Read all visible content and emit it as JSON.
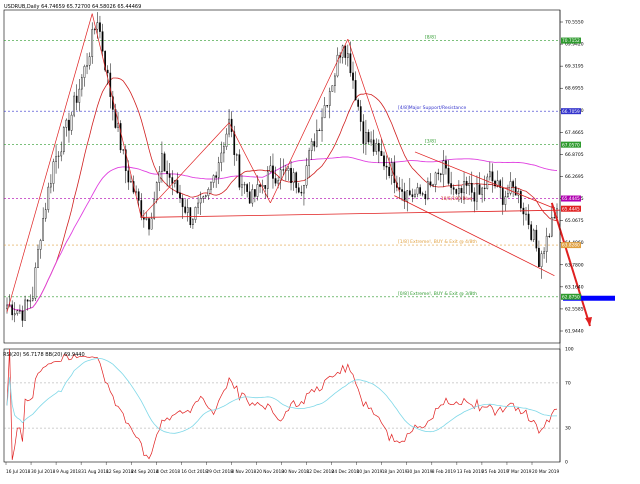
{
  "header": {
    "symbol_line": "USDRUB,Daily  64.74659 65.72700 64.58026 65.44469"
  },
  "main": {
    "levels": [
      {
        "price": 70.06,
        "label": "[8/8]",
        "price_label": "70.7152",
        "color": "#2e9a2e",
        "dashed": true
      },
      {
        "price": 68.12,
        "label": "[4/8]Major Support/Resistance",
        "price_label": "66.7059",
        "color": "#3333cc",
        "dashed": true
      },
      {
        "price": 67.2,
        "label": "[3/8]",
        "price_label": "67.0570",
        "color": "#2e9a2e",
        "dashed": true
      },
      {
        "price": 65.72,
        "label": "",
        "price_label": "65.4445",
        "color": "#b000b0",
        "dashed": true
      },
      {
        "price": 64.44,
        "label": "[1/8] Extreme!, BUY & Exit @ 4/8th",
        "price_label": "63.8280",
        "color": "#e0a040",
        "dashed": true
      },
      {
        "price": 63.02,
        "label": "[0/8] Extreme!, BUY & Exit @ 3/8th",
        "price_label": "62.8750",
        "color": "#2e9a2e",
        "dashed": true
      }
    ],
    "label_ma": "10/5/100 Blue",
    "price_axis": [
      "70.5550",
      "69.9420",
      "69.3195",
      "68.6955",
      "68.0800",
      "67.4665",
      "66.8705",
      "66.2695",
      "65.6685",
      "65.0675",
      "64.4060",
      "63.7800",
      "63.1640",
      "62.5585",
      "61.9440"
    ],
    "last_price_label": "65.4445",
    "arrow_color": "#e02020",
    "target_bar_color": "#0000ff"
  },
  "rsi": {
    "label": "RSI(20) 56.7178  BB(20) 69.9440",
    "axis": [
      "100",
      "70",
      "30",
      "0"
    ]
  },
  "x_axis": [
    "16 Jul 2018",
    "30 Jul 2018",
    "9 Aug 2018",
    "31 Aug 2018",
    "12 Sep 2018",
    "24 Sep 2018",
    "4 Oct 2018",
    "16 Oct 2018",
    "29 Oct 2018",
    "8 Nov 2018",
    "20 Nov 2018",
    "30 Nov 2018",
    "12 Dec 2018",
    "24 Dec 2018",
    "10 Jan 2019",
    "18 Jan 2019",
    "30 Jan 2019",
    "8 Feb 2019",
    "13 Feb 2019",
    "25 Feb 2019",
    "7 Mar 2019",
    "20 Mar 2019"
  ],
  "chart_data": {
    "type": "candlestick",
    "ylim": [
      61.75,
      70.9
    ],
    "close_anchors": [
      [
        0,
        62.8
      ],
      [
        6,
        62.6
      ],
      [
        10,
        63.1
      ],
      [
        13,
        64.8
      ],
      [
        18,
        66.7
      ],
      [
        24,
        67.8
      ],
      [
        31,
        69.5
      ],
      [
        35,
        70.7
      ],
      [
        40,
        68.6
      ],
      [
        46,
        66.5
      ],
      [
        52,
        65.4
      ],
      [
        55,
        65.1
      ],
      [
        60,
        66.7
      ],
      [
        66,
        65.9
      ],
      [
        71,
        65.2
      ],
      [
        77,
        65.6
      ],
      [
        82,
        66.8
      ],
      [
        86,
        67.8
      ],
      [
        90,
        66.3
      ],
      [
        95,
        65.7
      ],
      [
        102,
        66.4
      ],
      [
        108,
        66.4
      ],
      [
        114,
        66.1
      ],
      [
        120,
        67.6
      ],
      [
        127,
        69.2
      ],
      [
        130,
        70.1
      ],
      [
        133,
        69.4
      ],
      [
        138,
        67.5
      ],
      [
        144,
        66.9
      ],
      [
        149,
        66.5
      ],
      [
        154,
        65.9
      ],
      [
        159,
        65.8
      ],
      [
        164,
        66.0
      ],
      [
        169,
        66.5
      ],
      [
        174,
        65.7
      ],
      [
        178,
        66.0
      ],
      [
        183,
        65.8
      ],
      [
        187,
        66.3
      ],
      [
        192,
        65.8
      ],
      [
        197,
        66.0
      ],
      [
        202,
        65.1
      ],
      [
        206,
        64.1
      ],
      [
        209,
        64.6
      ],
      [
        212,
        65.3
      ]
    ],
    "last_close": 65.44,
    "rsi_ylim": [
      0,
      100
    ],
    "rsi_levels": [
      70,
      30
    ]
  }
}
